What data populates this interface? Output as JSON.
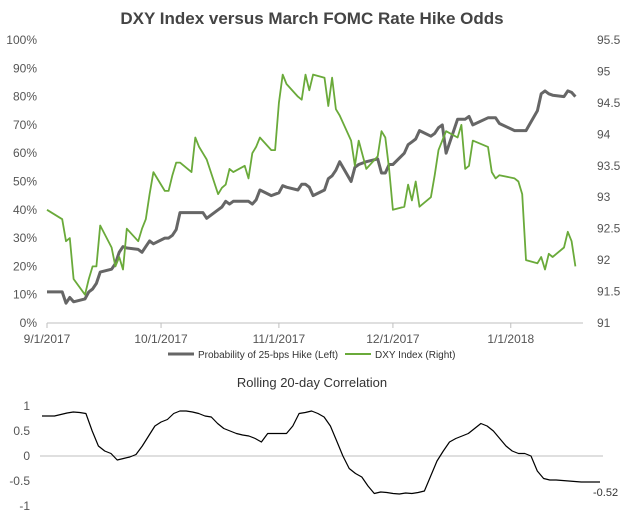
{
  "chart_data": [
    {
      "type": "line",
      "title": "DXY Index versus March FOMC Rate Hike Odds",
      "xlabel": "",
      "ylabel_left": "",
      "ylabel_right": "",
      "x_ticks": [
        "9/1/2017",
        "10/1/2017",
        "11/1/2017",
        "12/1/2017",
        "1/1/2018"
      ],
      "left_axis": {
        "min": 0,
        "max": 100,
        "ticks": [
          "0%",
          "10%",
          "20%",
          "30%",
          "40%",
          "50%",
          "60%",
          "70%",
          "80%",
          "90%",
          "100%"
        ]
      },
      "right_axis": {
        "min": 91,
        "max": 95.5,
        "ticks": [
          "91",
          "91.5",
          "92",
          "92.5",
          "93",
          "93.5",
          "94",
          "94.5",
          "95",
          "95.5"
        ]
      },
      "grid": false,
      "legend_position": "bottom",
      "series": [
        {
          "name": "Probability of 25-bps Hike (Left)",
          "axis": "left",
          "color": "#666666",
          "points": [
            [
              "2017-09-01",
              11
            ],
            [
              "2017-09-05",
              11
            ],
            [
              "2017-09-06",
              7
            ],
            [
              "2017-09-07",
              9
            ],
            [
              "2017-09-08",
              7.5
            ],
            [
              "2017-09-11",
              8.5
            ],
            [
              "2017-09-12",
              11
            ],
            [
              "2017-09-13",
              12
            ],
            [
              "2017-09-14",
              14
            ],
            [
              "2017-09-15",
              18
            ],
            [
              "2017-09-18",
              19
            ],
            [
              "2017-09-19",
              21
            ],
            [
              "2017-09-20",
              25
            ],
            [
              "2017-09-21",
              27
            ],
            [
              "2017-09-22",
              26.5
            ],
            [
              "2017-09-25",
              26
            ],
            [
              "2017-09-26",
              25
            ],
            [
              "2017-09-27",
              27
            ],
            [
              "2017-09-28",
              29
            ],
            [
              "2017-09-29",
              28
            ],
            [
              "2017-10-02",
              30
            ],
            [
              "2017-10-03",
              30
            ],
            [
              "2017-10-04",
              31
            ],
            [
              "2017-10-05",
              33
            ],
            [
              "2017-10-06",
              39
            ],
            [
              "2017-10-09",
              39
            ],
            [
              "2017-10-10",
              39
            ],
            [
              "2017-10-11",
              39
            ],
            [
              "2017-10-12",
              39
            ],
            [
              "2017-10-13",
              37
            ],
            [
              "2017-10-16",
              40
            ],
            [
              "2017-10-17",
              41
            ],
            [
              "2017-10-18",
              43
            ],
            [
              "2017-10-19",
              42
            ],
            [
              "2017-10-20",
              43
            ],
            [
              "2017-10-23",
              43
            ],
            [
              "2017-10-24",
              43
            ],
            [
              "2017-10-25",
              42
            ],
            [
              "2017-10-26",
              43.5
            ],
            [
              "2017-10-27",
              47
            ],
            [
              "2017-10-30",
              45
            ],
            [
              "2017-10-31",
              45.5
            ],
            [
              "2017-11-01",
              46
            ],
            [
              "2017-11-02",
              48.5
            ],
            [
              "2017-11-03",
              48
            ],
            [
              "2017-11-06",
              47
            ],
            [
              "2017-11-07",
              49
            ],
            [
              "2017-11-08",
              49
            ],
            [
              "2017-11-09",
              48
            ],
            [
              "2017-11-10",
              45
            ],
            [
              "2017-11-13",
              47
            ],
            [
              "2017-11-14",
              51
            ],
            [
              "2017-11-15",
              52
            ],
            [
              "2017-11-16",
              54
            ],
            [
              "2017-11-17",
              57
            ],
            [
              "2017-11-20",
              50
            ],
            [
              "2017-11-21",
              55
            ],
            [
              "2017-11-22",
              56
            ],
            [
              "2017-11-24",
              57
            ],
            [
              "2017-11-27",
              58
            ],
            [
              "2017-11-28",
              53
            ],
            [
              "2017-11-29",
              53
            ],
            [
              "2017-11-30",
              56
            ],
            [
              "2017-12-01",
              56
            ],
            [
              "2017-12-04",
              60
            ],
            [
              "2017-12-05",
              63
            ],
            [
              "2017-12-06",
              64
            ],
            [
              "2017-12-07",
              65
            ],
            [
              "2017-12-08",
              68
            ],
            [
              "2017-12-11",
              66
            ],
            [
              "2017-12-12",
              67
            ],
            [
              "2017-12-13",
              69
            ],
            [
              "2017-12-14",
              70
            ],
            [
              "2017-12-15",
              60
            ],
            [
              "2017-12-18",
              72
            ],
            [
              "2017-12-19",
              72
            ],
            [
              "2017-12-20",
              72
            ],
            [
              "2017-12-21",
              73
            ],
            [
              "2017-12-22",
              70
            ],
            [
              "2017-12-26",
              72.5
            ],
            [
              "2017-12-27",
              72.5
            ],
            [
              "2017-12-28",
              72.5
            ],
            [
              "2017-12-29",
              70.5
            ],
            [
              "2018-01-02",
              68
            ],
            [
              "2018-01-03",
              68
            ],
            [
              "2018-01-04",
              68
            ],
            [
              "2018-01-05",
              68
            ],
            [
              "2018-01-08",
              75
            ],
            [
              "2018-01-09",
              81
            ],
            [
              "2018-01-10",
              82
            ],
            [
              "2018-01-11",
              81
            ],
            [
              "2018-01-12",
              80.5
            ],
            [
              "2018-01-15",
              80
            ],
            [
              "2018-01-16",
              82
            ],
            [
              "2018-01-17",
              81.5
            ],
            [
              "2018-01-18",
              80
            ]
          ]
        },
        {
          "name": "DXY Index (Right)",
          "axis": "right",
          "color": "#6aaa3a",
          "points": [
            [
              "2017-09-01",
              92.8
            ],
            [
              "2017-09-05",
              92.65
            ],
            [
              "2017-09-06",
              92.3
            ],
            [
              "2017-09-07",
              92.35
            ],
            [
              "2017-09-08",
              91.7
            ],
            [
              "2017-09-11",
              91.45
            ],
            [
              "2017-09-12",
              91.7
            ],
            [
              "2017-09-13",
              91.9
            ],
            [
              "2017-09-14",
              91.9
            ],
            [
              "2017-09-15",
              92.55
            ],
            [
              "2017-09-18",
              92.2
            ],
            [
              "2017-09-19",
              91.9
            ],
            [
              "2017-09-20",
              92.05
            ],
            [
              "2017-09-21",
              91.85
            ],
            [
              "2017-09-22",
              92.5
            ],
            [
              "2017-09-25",
              92.3
            ],
            [
              "2017-09-26",
              92.5
            ],
            [
              "2017-09-27",
              92.65
            ],
            [
              "2017-09-28",
              93.05
            ],
            [
              "2017-09-29",
              93.4
            ],
            [
              "2017-10-02",
              93.1
            ],
            [
              "2017-10-03",
              93.1
            ],
            [
              "2017-10-04",
              93.35
            ],
            [
              "2017-10-05",
              93.55
            ],
            [
              "2017-10-06",
              93.55
            ],
            [
              "2017-10-09",
              93.4
            ],
            [
              "2017-10-10",
              93.95
            ],
            [
              "2017-10-11",
              93.8
            ],
            [
              "2017-10-12",
              93.7
            ],
            [
              "2017-10-13",
              93.6
            ],
            [
              "2017-10-16",
              93.05
            ],
            [
              "2017-10-17",
              93.15
            ],
            [
              "2017-10-18",
              93.2
            ],
            [
              "2017-10-19",
              93.45
            ],
            [
              "2017-10-20",
              93.4
            ],
            [
              "2017-10-23",
              93.5
            ],
            [
              "2017-10-24",
              93.3
            ],
            [
              "2017-10-25",
              93.7
            ],
            [
              "2017-10-26",
              93.8
            ],
            [
              "2017-10-27",
              93.95
            ],
            [
              "2017-10-30",
              93.75
            ],
            [
              "2017-10-31",
              93.75
            ],
            [
              "2017-11-01",
              94.5
            ],
            [
              "2017-11-02",
              94.95
            ],
            [
              "2017-11-03",
              94.8
            ],
            [
              "2017-11-06",
              94.6
            ],
            [
              "2017-11-07",
              94.55
            ],
            [
              "2017-11-08",
              94.95
            ],
            [
              "2017-11-09",
              94.7
            ],
            [
              "2017-11-10",
              94.95
            ],
            [
              "2017-11-13",
              94.9
            ],
            [
              "2017-11-14",
              94.45
            ],
            [
              "2017-11-15",
              94.9
            ],
            [
              "2017-11-16",
              94.4
            ],
            [
              "2017-11-17",
              94.3
            ],
            [
              "2017-11-20",
              93.9
            ],
            [
              "2017-11-21",
              93.5
            ],
            [
              "2017-11-22",
              93.9
            ],
            [
              "2017-11-24",
              93.45
            ],
            [
              "2017-11-27",
              93.65
            ],
            [
              "2017-11-28",
              94.05
            ],
            [
              "2017-11-29",
              93.95
            ],
            [
              "2017-11-30",
              93.45
            ],
            [
              "2017-12-01",
              92.8
            ],
            [
              "2017-12-04",
              92.85
            ],
            [
              "2017-12-05",
              93.2
            ],
            [
              "2017-12-06",
              92.95
            ],
            [
              "2017-12-07",
              93.25
            ],
            [
              "2017-12-08",
              92.85
            ],
            [
              "2017-12-11",
              93.0
            ],
            [
              "2017-12-12",
              93.35
            ],
            [
              "2017-12-13",
              93.75
            ],
            [
              "2017-12-14",
              93.9
            ],
            [
              "2017-12-15",
              94.05
            ],
            [
              "2017-12-18",
              93.95
            ],
            [
              "2017-12-19",
              94.15
            ],
            [
              "2017-12-20",
              93.45
            ],
            [
              "2017-12-21",
              93.5
            ],
            [
              "2017-12-22",
              93.9
            ],
            [
              "2017-12-26",
              93.8
            ],
            [
              "2017-12-27",
              93.4
            ],
            [
              "2017-12-28",
              93.3
            ],
            [
              "2017-12-29",
              93.35
            ],
            [
              "2018-01-02",
              93.3
            ],
            [
              "2018-01-03",
              93.25
            ],
            [
              "2018-01-04",
              93.05
            ],
            [
              "2018-01-05",
              92.0
            ],
            [
              "2018-01-08",
              91.95
            ],
            [
              "2018-01-09",
              92.05
            ],
            [
              "2018-01-10",
              91.85
            ],
            [
              "2018-01-11",
              92.1
            ],
            [
              "2018-01-12",
              92.05
            ],
            [
              "2018-01-15",
              92.2
            ],
            [
              "2018-01-16",
              92.45
            ],
            [
              "2018-01-17",
              92.3
            ],
            [
              "2018-01-18",
              91.9
            ]
          ]
        }
      ]
    },
    {
      "type": "line",
      "title": "Rolling 20-day  Correlation",
      "xlabel": "",
      "ylabel": "",
      "ylim": [
        -1,
        1
      ],
      "y_ticks": [
        "1",
        "0.5",
        "0",
        "-0.5",
        "-1"
      ],
      "grid": false,
      "annotation": "-0.52",
      "series": [
        {
          "color": "#000000",
          "values": [
            0.8,
            0.8,
            0.8,
            0.83,
            0.86,
            0.88,
            0.87,
            0.85,
            0.5,
            0.2,
            0.1,
            0.05,
            -0.08,
            -0.05,
            -0.02,
            0.03,
            0.2,
            0.4,
            0.6,
            0.68,
            0.73,
            0.85,
            0.9,
            0.9,
            0.88,
            0.85,
            0.8,
            0.78,
            0.65,
            0.55,
            0.5,
            0.45,
            0.42,
            0.4,
            0.35,
            0.28,
            0.45,
            0.45,
            0.45,
            0.45,
            0.6,
            0.85,
            0.87,
            0.9,
            0.85,
            0.78,
            0.6,
            0.3,
            0.0,
            -0.25,
            -0.35,
            -0.42,
            -0.6,
            -0.75,
            -0.72,
            -0.73,
            -0.75,
            -0.76,
            -0.74,
            -0.75,
            -0.73,
            -0.7,
            -0.4,
            -0.1,
            0.1,
            0.28,
            0.35,
            0.4,
            0.45,
            0.55,
            0.65,
            0.6,
            0.5,
            0.35,
            0.2,
            0.1,
            0.05,
            0.05,
            0.0,
            -0.3,
            -0.45,
            -0.48,
            -0.48,
            -0.49,
            -0.5,
            -0.51,
            -0.52,
            -0.52,
            -0.52,
            -0.52
          ]
        }
      ]
    }
  ]
}
